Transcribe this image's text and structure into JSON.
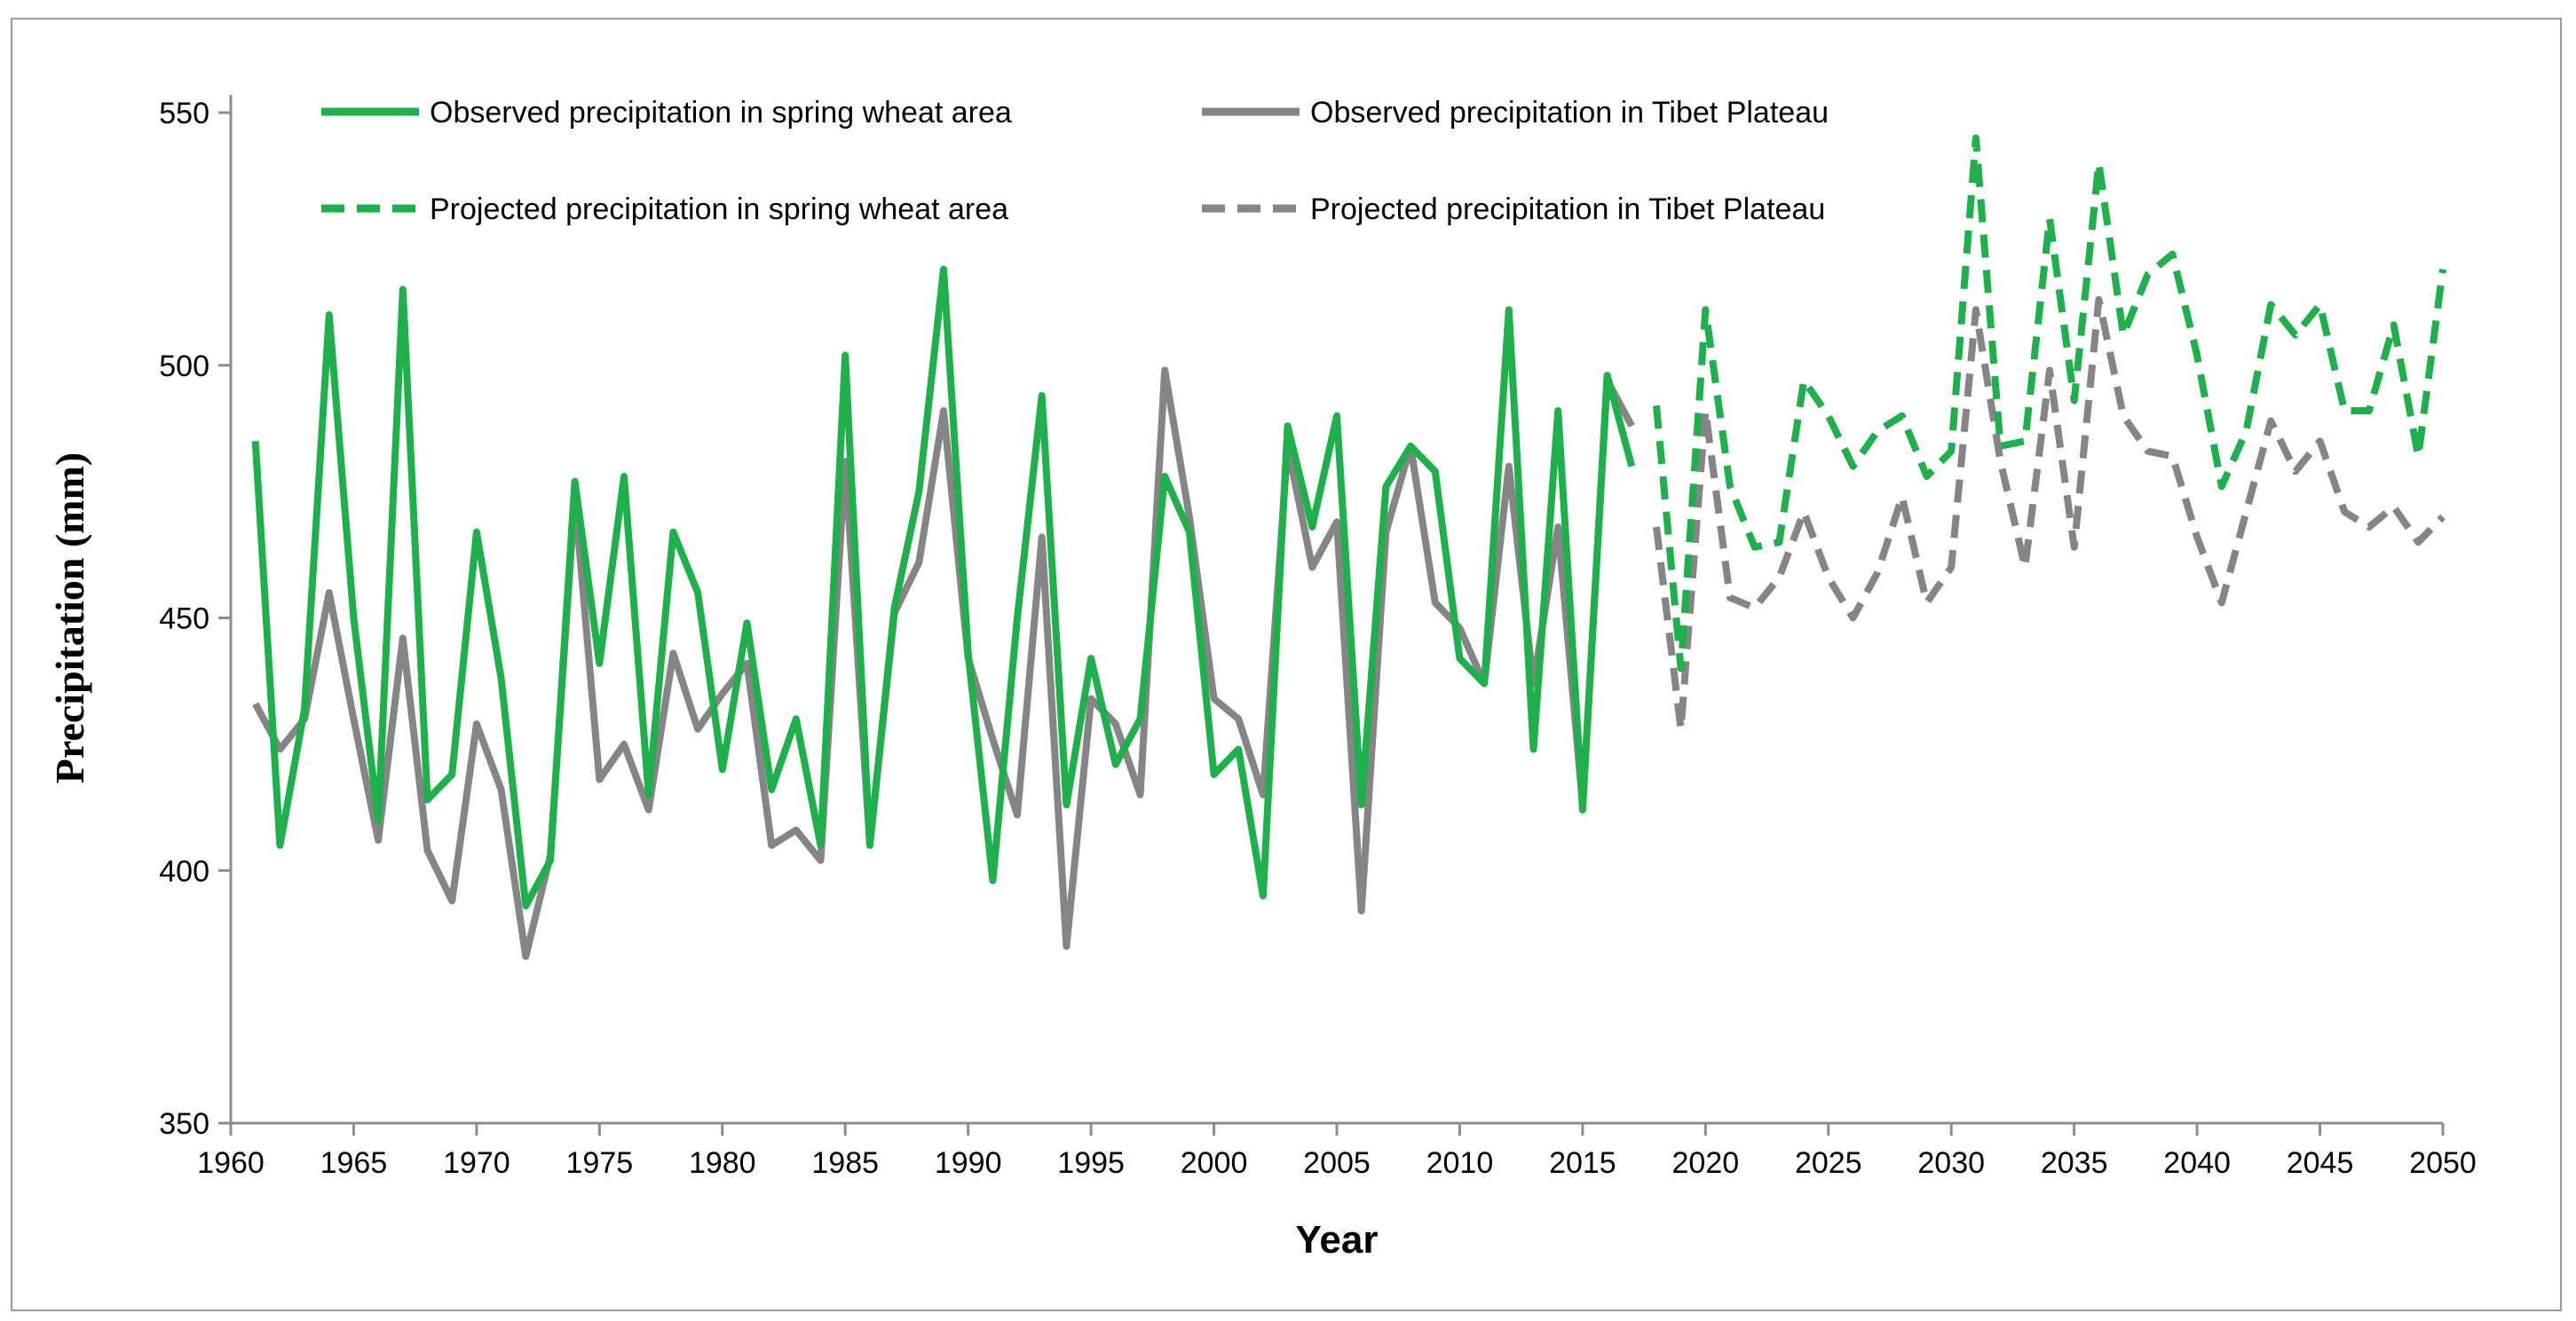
{
  "chart_data": {
    "type": "line",
    "title": "",
    "xlabel": "Year",
    "ylabel": "Precipitation (mm)",
    "xlim": [
      1960,
      2050
    ],
    "ylim": [
      350,
      550
    ],
    "xticks": [
      1960,
      1965,
      1970,
      1975,
      1980,
      1985,
      1990,
      1995,
      2000,
      2005,
      2010,
      2015,
      2020,
      2025,
      2030,
      2035,
      2040,
      2045,
      2050
    ],
    "yticks": [
      350,
      400,
      450,
      500,
      550
    ],
    "grid": false,
    "legend_position": "top",
    "series": [
      {
        "name": "Observed precipitation in spring wheat area",
        "color": "#1eb04b",
        "style": "solid",
        "x": [
          1961,
          1962,
          1963,
          1964,
          1965,
          1966,
          1967,
          1968,
          1969,
          1970,
          1971,
          1972,
          1973,
          1974,
          1975,
          1976,
          1977,
          1978,
          1979,
          1980,
          1981,
          1982,
          1983,
          1984,
          1985,
          1986,
          1987,
          1988,
          1989,
          1990,
          1991,
          1992,
          1993,
          1994,
          1995,
          1996,
          1997,
          1998,
          1999,
          2000,
          2001,
          2002,
          2003,
          2004,
          2005,
          2006,
          2007,
          2008,
          2009,
          2010,
          2011,
          2012,
          2013,
          2014,
          2015,
          2016,
          2017
        ],
        "values": [
          485,
          405,
          432,
          510,
          450,
          410,
          515,
          414,
          419,
          467,
          438,
          393,
          402,
          477,
          441,
          478,
          415,
          467,
          455,
          420,
          449,
          416,
          430,
          405,
          502,
          405,
          452,
          475,
          519,
          443,
          398,
          450,
          494,
          413,
          442,
          421,
          430,
          478,
          467,
          419,
          424,
          395,
          488,
          468,
          490,
          413,
          476,
          484,
          479,
          442,
          437,
          511,
          424,
          491,
          412,
          498,
          480
        ]
      },
      {
        "name": "Observed precipitation in Tibet Plateau",
        "color": "#858585",
        "style": "solid",
        "x": [
          1961,
          1962,
          1963,
          1964,
          1965,
          1966,
          1967,
          1968,
          1969,
          1970,
          1971,
          1972,
          1973,
          1974,
          1975,
          1976,
          1977,
          1978,
          1979,
          1980,
          1981,
          1982,
          1983,
          1984,
          1985,
          1986,
          1987,
          1988,
          1989,
          1990,
          1991,
          1992,
          1993,
          1994,
          1995,
          1996,
          1997,
          1998,
          1999,
          2000,
          2001,
          2002,
          2003,
          2004,
          2005,
          2006,
          2007,
          2008,
          2009,
          2010,
          2011,
          2012,
          2013,
          2014,
          2015,
          2016,
          2017
        ],
        "values": [
          433,
          424,
          430,
          455,
          430,
          406,
          446,
          404,
          394,
          429,
          416,
          383,
          403,
          474,
          418,
          425,
          412,
          443,
          428,
          435,
          441,
          405,
          408,
          402,
          481,
          405,
          451,
          461,
          491,
          442,
          426,
          411,
          466,
          385,
          434,
          429,
          415,
          499,
          470,
          434,
          430,
          415,
          484,
          460,
          469,
          392,
          467,
          484,
          453,
          448,
          437,
          480,
          437,
          468,
          413,
          497,
          488
        ]
      },
      {
        "name": "Projected precipitation in spring wheat area",
        "color": "#1eb04b",
        "style": "dashed",
        "x": [
          2018,
          2019,
          2020,
          2021,
          2022,
          2023,
          2024,
          2025,
          2026,
          2027,
          2028,
          2029,
          2030,
          2031,
          2032,
          2033,
          2034,
          2035,
          2036,
          2037,
          2038,
          2039,
          2040,
          2041,
          2042,
          2043,
          2044,
          2045,
          2046,
          2047,
          2048,
          2049,
          2050
        ],
        "values": [
          492,
          440,
          511,
          476,
          464,
          465,
          497,
          490,
          480,
          487,
          490,
          478,
          483,
          545,
          484,
          485,
          529,
          493,
          540,
          506,
          518,
          522,
          502,
          476,
          487,
          512,
          506,
          512,
          491,
          491,
          508,
          482,
          519
        ]
      },
      {
        "name": "Projected precipitation in Tibet Plateau",
        "color": "#858585",
        "style": "dashed",
        "x": [
          2018,
          2019,
          2020,
          2021,
          2022,
          2023,
          2024,
          2025,
          2026,
          2027,
          2028,
          2029,
          2030,
          2031,
          2032,
          2033,
          2034,
          2035,
          2036,
          2037,
          2038,
          2039,
          2040,
          2041,
          2042,
          2043,
          2044,
          2045,
          2046,
          2047,
          2048,
          2049,
          2050
        ],
        "values": [
          468,
          428,
          491,
          454,
          452,
          458,
          471,
          458,
          450,
          459,
          474,
          453,
          460,
          511,
          481,
          460,
          499,
          464,
          513,
          490,
          483,
          482,
          466,
          453,
          471,
          489,
          479,
          485,
          471,
          468,
          472,
          465,
          470
        ]
      }
    ]
  }
}
